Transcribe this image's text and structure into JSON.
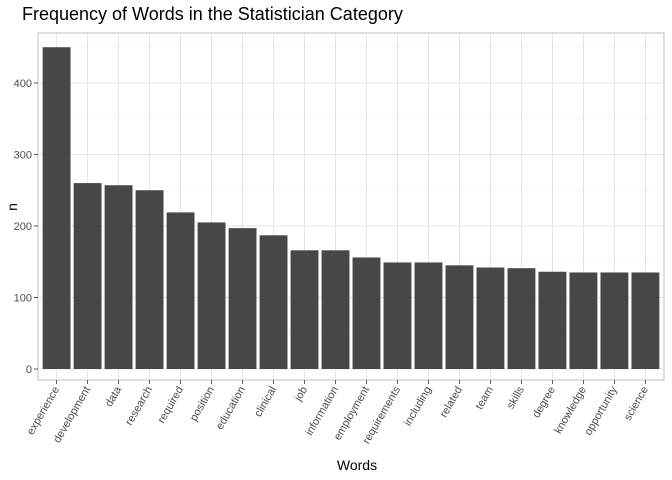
{
  "chart_data": {
    "type": "bar",
    "title": "Frequency of Words in the Statistician Category",
    "xlabel": "Words",
    "ylabel": "n",
    "categories": [
      "experience",
      "development",
      "data",
      "research",
      "required",
      "position",
      "education",
      "clinical",
      "job",
      "information",
      "employment",
      "requirements",
      "including",
      "related",
      "team",
      "skills",
      "degree",
      "knowledge",
      "opportunity",
      "science"
    ],
    "values": [
      450,
      260,
      257,
      250,
      219,
      205,
      197,
      187,
      166,
      166,
      156,
      149,
      149,
      145,
      142,
      141,
      136,
      135,
      135,
      135
    ],
    "ylim": [
      0,
      450
    ],
    "yticks": [
      0,
      100,
      200,
      300,
      400
    ],
    "grid": true,
    "bar_color": "#474747",
    "legend": "none"
  }
}
